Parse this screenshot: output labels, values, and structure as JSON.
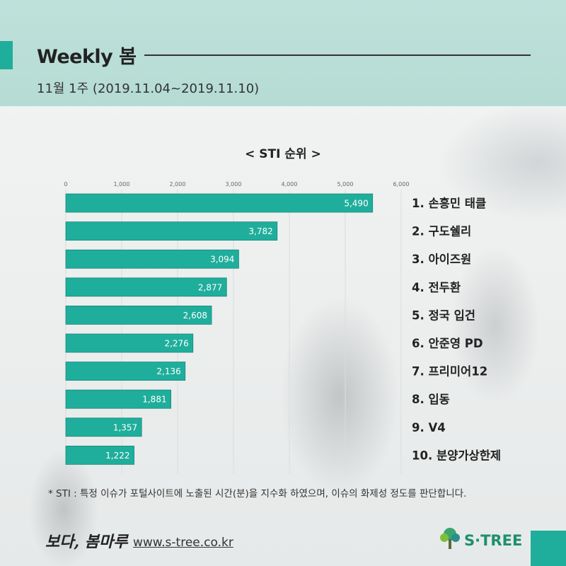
{
  "header": {
    "title": "Weekly 봄",
    "subtitle": "11월 1주 (2019.11.04~2019.11.10)"
  },
  "chart_data": {
    "type": "bar",
    "orientation": "horizontal",
    "title": "< STI 순위 >",
    "categories": [
      "1. 손흥민 태클",
      "2. 구도쉘리",
      "3. 아이즈원",
      "4. 전두환",
      "5. 정국 입건",
      "6. 안준영 PD",
      "7. 프리미어12",
      "8. 입동",
      "9. V4",
      "10. 분양가상한제"
    ],
    "values": [
      5490,
      3782,
      3094,
      2877,
      2608,
      2276,
      2136,
      1881,
      1357,
      1222
    ],
    "value_labels": [
      "5,490",
      "3,782",
      "3,094",
      "2,877",
      "2,608",
      "2,276",
      "2,136",
      "1,881",
      "1,357",
      "1,222"
    ],
    "xlim": [
      0,
      6000
    ],
    "ticks": [
      0,
      1000,
      2000,
      3000,
      4000,
      5000,
      6000
    ],
    "tick_labels": [
      "0",
      "1,000",
      "2,000",
      "3,000",
      "4,000",
      "5,000",
      "6,000"
    ],
    "grid": true,
    "bar_color": "#1fae9b"
  },
  "footnote": "* STI : 특정 이슈가 포털사이트에 노출된 시간(분)을 지수화 하였으며, 이슈의 화제성 정도를 판단합니다.",
  "footer": {
    "logo_text": "보다, 봄마루",
    "url": "www.s-tree.co.kr",
    "brand": "S·TREE",
    "brand_icon": "tree-icon"
  },
  "colors": {
    "accent": "#1fae9b",
    "header_bg": "#b8ddd5",
    "brand": "#1f8f6e"
  }
}
